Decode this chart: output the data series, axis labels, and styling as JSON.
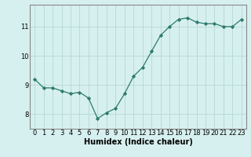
{
  "x": [
    0,
    1,
    2,
    3,
    4,
    5,
    6,
    7,
    8,
    9,
    10,
    11,
    12,
    13,
    14,
    15,
    16,
    17,
    18,
    19,
    20,
    21,
    22,
    23
  ],
  "y": [
    9.2,
    8.9,
    8.9,
    8.8,
    8.7,
    8.75,
    8.55,
    7.85,
    8.05,
    8.2,
    8.7,
    9.3,
    9.6,
    10.15,
    10.7,
    11.0,
    11.25,
    11.3,
    11.15,
    11.1,
    11.1,
    11.0,
    11.0,
    11.25
  ],
  "line_color": "#2d7a6e",
  "marker": "D",
  "marker_size": 2.2,
  "bg_color": "#d6f0ef",
  "grid_color": "#b8dbd9",
  "xlabel": "Humidex (Indice chaleur)",
  "xlabel_fontsize": 7,
  "tick_fontsize": 6,
  "ylim": [
    7.5,
    11.75
  ],
  "yticks": [
    8,
    9,
    10,
    11
  ],
  "xticks": [
    0,
    1,
    2,
    3,
    4,
    5,
    6,
    7,
    8,
    9,
    10,
    11,
    12,
    13,
    14,
    15,
    16,
    17,
    18,
    19,
    20,
    21,
    22,
    23
  ],
  "spine_color": "#888888",
  "linewidth": 0.9
}
